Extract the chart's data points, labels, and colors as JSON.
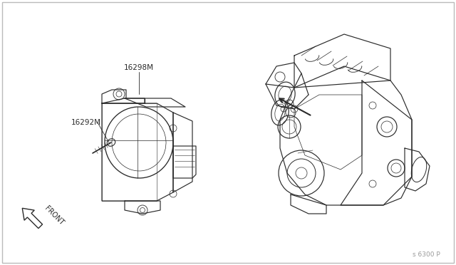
{
  "bg_color": "#ffffff",
  "line_color": "#2a2a2a",
  "text_color": "#2a2a2a",
  "label_16298M": "16298M",
  "label_16292M": "16292M",
  "label_front": "FRONT",
  "label_part_num": "s 6300 P",
  "figsize": [
    6.4,
    3.72
  ],
  "dpi": 100,
  "border_color": "#bbbbbb"
}
